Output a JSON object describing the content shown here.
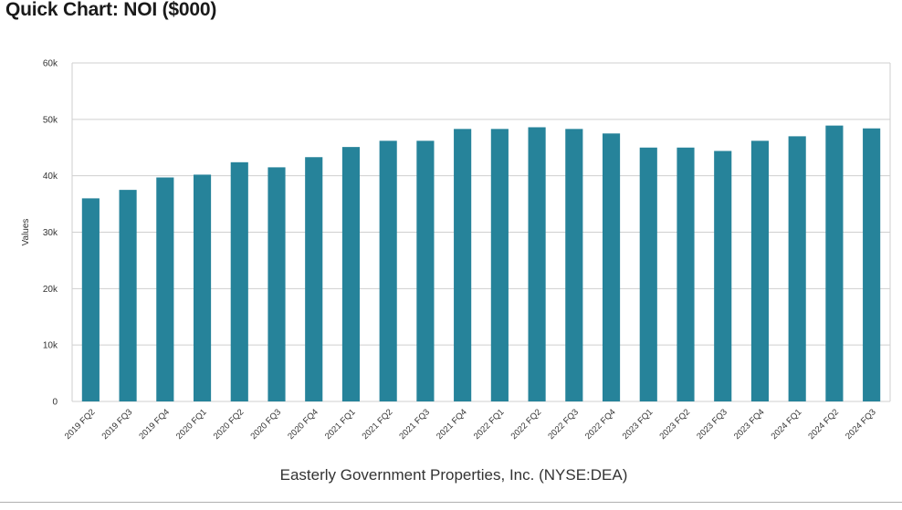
{
  "header": {
    "title": "Quick Chart: NOI ($000)"
  },
  "chart_data": {
    "type": "bar",
    "title": "Quick Chart: NOI ($000)",
    "subtitle": "Easterly Government Properties, Inc. (NYSE:DEA)",
    "xlabel": "",
    "ylabel": "Values",
    "ylim": [
      0,
      60000
    ],
    "yticks": [
      0,
      10000,
      20000,
      30000,
      40000,
      50000,
      60000
    ],
    "ytick_labels": [
      "0",
      "10k",
      "20k",
      "30k",
      "40k",
      "50k",
      "60k"
    ],
    "grid": true,
    "bar_color": "#26839a",
    "categories": [
      "2019 FQ2",
      "2019 FQ3",
      "2019 FQ4",
      "2020 FQ1",
      "2020 FQ2",
      "2020 FQ3",
      "2020 FQ4",
      "2021 FQ1",
      "2021 FQ2",
      "2021 FQ3",
      "2021 FQ4",
      "2022 FQ1",
      "2022 FQ2",
      "2022 FQ3",
      "2022 FQ4",
      "2023 FQ1",
      "2023 FQ2",
      "2023 FQ3",
      "2023 FQ4",
      "2024 FQ1",
      "2024 FQ2",
      "2024 FQ3"
    ],
    "values": [
      36000,
      37500,
      39700,
      40200,
      42400,
      41500,
      43300,
      45100,
      46200,
      46200,
      48300,
      48300,
      48600,
      48300,
      47500,
      45000,
      45000,
      44400,
      46200,
      47000,
      48900,
      48400
    ]
  }
}
